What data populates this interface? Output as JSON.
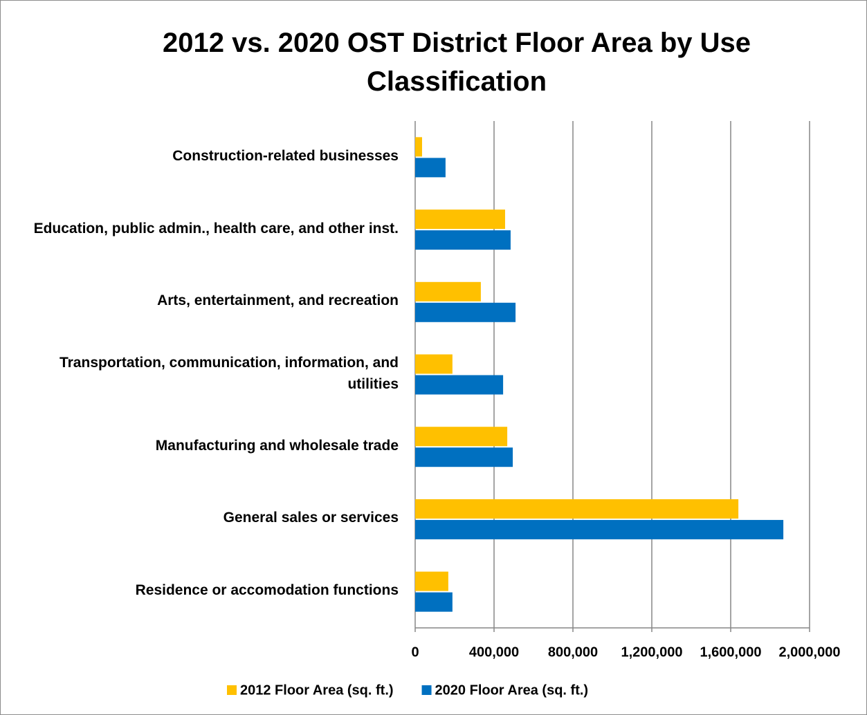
{
  "chart_data": {
    "type": "hbar",
    "title": "2012 vs. 2020 OST District Floor Area by Use Classification",
    "categories": [
      "Construction-related businesses",
      "Education, public admin., health care, and other inst.",
      "Arts, entertainment, and recreation",
      "Transportation, communication, information, and utilities",
      "Manufacturing and wholesale trade",
      "General sales or services",
      "Residence or accomodation functions"
    ],
    "series": [
      {
        "name": "2012 Floor Area (sq. ft.)",
        "color": "#ffc000",
        "values": [
          35000,
          456000,
          333000,
          189000,
          467000,
          1639000,
          168000
        ]
      },
      {
        "name": "2020 Floor Area (sq. ft.)",
        "color": "#0070c0",
        "values": [
          154000,
          484000,
          509000,
          446000,
          495000,
          1867000,
          189000
        ]
      }
    ],
    "xlim": [
      0,
      2000000
    ],
    "xticks": [
      0,
      {
        "value": 400000,
        "label": "400,000"
      },
      {
        "value": 800000,
        "label": "800,000"
      },
      {
        "value": 1200000,
        "label": "1,200,000"
      },
      {
        "value": 1600000,
        "label": "1,600,000"
      },
      {
        "value": 2000000,
        "label": "2,000,000"
      }
    ],
    "grid": true,
    "legend": "bottom"
  }
}
